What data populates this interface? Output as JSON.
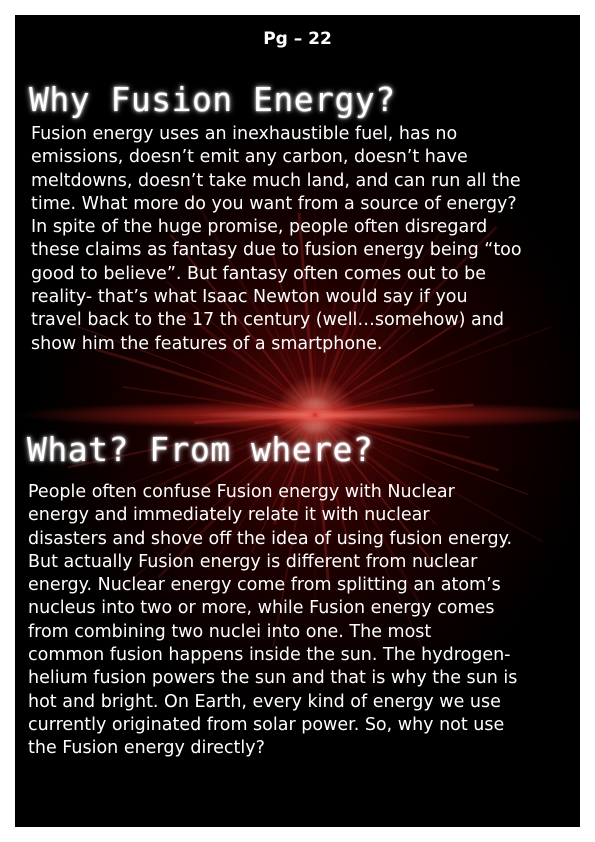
{
  "page_number": "Pg – 22",
  "section1": {
    "heading": "Why Fusion Energy?",
    "lines": [
      "Fusion energy uses an inexhaustible fuel, has no",
      "emissions, doesn’t emit any carbon, doesn’t have",
      "meltdowns, doesn’t take much land, and can run all the",
      "time. What more do you want from a source of energy?",
      "In spite of the huge promise, people often disregard",
      "these claims as fantasy due to fusion energy being “too",
      "good to believe”. But fantasy often comes out to be",
      "reality- that’s what Isaac Newton would say if you",
      "travel back to the 17 th century (well…somehow) and",
      "show him the features of a smartphone."
    ]
  },
  "section2": {
    "heading": "What? From where?",
    "lines": [
      "People often confuse Fusion energy with Nuclear",
      "energy and immediately relate it with nuclear",
      "disasters and shove off the idea of using fusion energy.",
      "But actually Fusion energy is different from nuclear",
      "energy. Nuclear energy come from splitting an atom’s",
      "nucleus into two or more, while Fusion energy comes",
      "from combining two nuclei into one.  The most",
      "common fusion happens inside the sun. The hydrogen-",
      "helium fusion powers the sun and that is why the sun is",
      "hot and bright. On Earth, every kind of energy we use",
      "currently originated from solar power. So, why not use",
      "the Fusion energy directly?"
    ]
  },
  "colors": {
    "background": "#000000",
    "text": "#ffffff",
    "glow": "#c0281e"
  }
}
